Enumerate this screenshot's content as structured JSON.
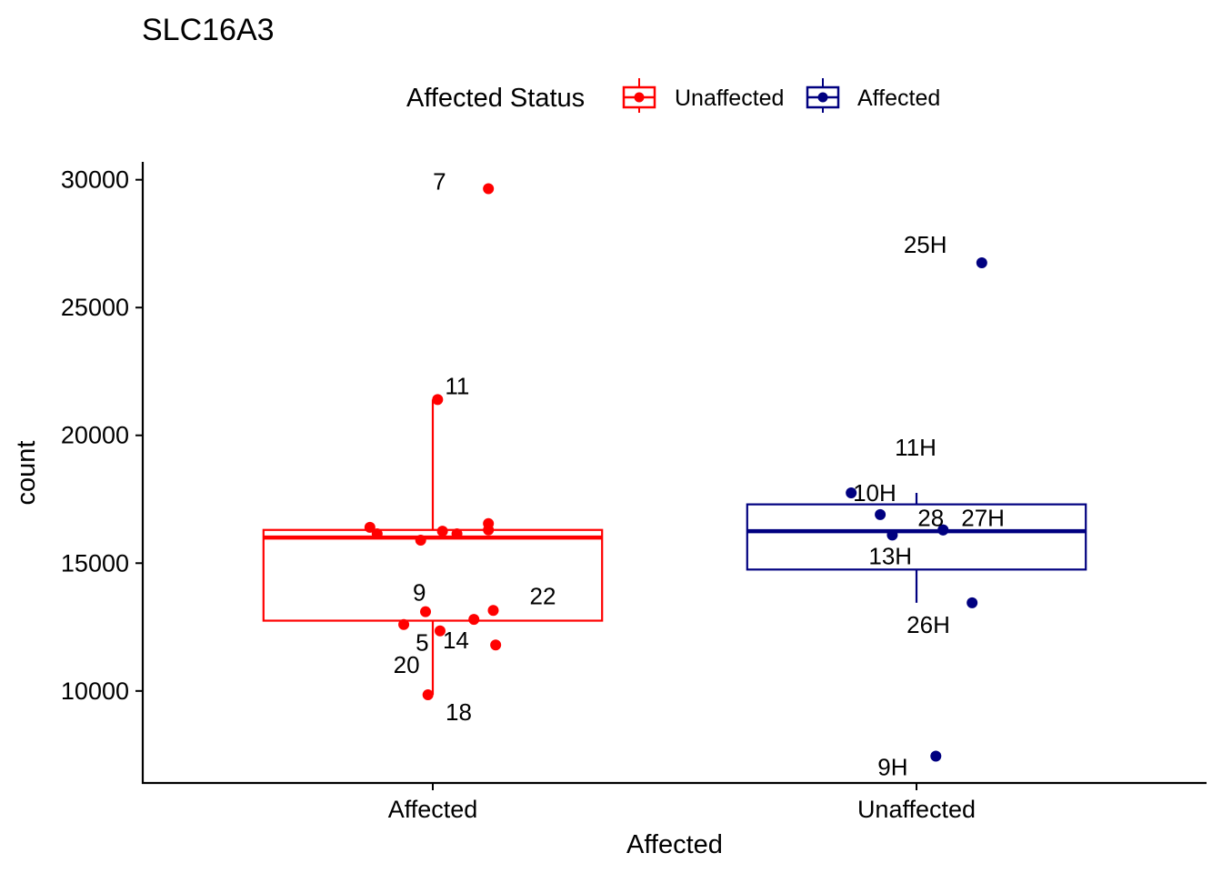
{
  "chart_data": {
    "type": "box",
    "title": "SLC16A3",
    "xlabel": "Affected",
    "ylabel": "count",
    "ylim": [
      6400,
      30700
    ],
    "y_ticks": [
      10000,
      15000,
      20000,
      25000,
      30000
    ],
    "categories": [
      "Affected",
      "Unaffected"
    ],
    "legend": {
      "title": "Affected Status",
      "position": "top",
      "entries": [
        {
          "label": "Unaffected",
          "color": "#ff0000"
        },
        {
          "label": "Affected",
          "color": "#000080"
        }
      ]
    },
    "series": [
      {
        "category": "Affected",
        "color": "#ff0000",
        "box": {
          "lower_whisker": 9850,
          "q1": 12750,
          "median": 16000,
          "q3": 16300,
          "upper_whisker": 21400
        },
        "points": [
          {
            "label": "7",
            "value": 29650,
            "jitter": 0.23
          },
          {
            "label": "11",
            "value": 21400,
            "jitter": 0.02
          },
          {
            "label": "",
            "value": 16400,
            "jitter": -0.26
          },
          {
            "label": "",
            "value": 16150,
            "jitter": -0.23
          },
          {
            "label": "",
            "value": 15900,
            "jitter": -0.05
          },
          {
            "label": "",
            "value": 16250,
            "jitter": 0.04
          },
          {
            "label": "",
            "value": 16150,
            "jitter": 0.1
          },
          {
            "label": "",
            "value": 16550,
            "jitter": 0.23
          },
          {
            "label": "",
            "value": 16300,
            "jitter": 0.23
          },
          {
            "label": "9",
            "value": 13100,
            "jitter": -0.03
          },
          {
            "label": "22",
            "value": 13150,
            "jitter": 0.25
          },
          {
            "label": "5",
            "value": 12600,
            "jitter": -0.12
          },
          {
            "label": "14",
            "value": 12350,
            "jitter": 0.03
          },
          {
            "label": "",
            "value": 12800,
            "jitter": 0.17
          },
          {
            "label": "",
            "value": 11800,
            "jitter": 0.26
          },
          {
            "label": "20",
            "value": 9850,
            "jitter": -0.02
          },
          {
            "label": "18",
            "value": null,
            "jitter": 0.0
          }
        ]
      },
      {
        "category": "Unaffected",
        "color": "#000080",
        "box": {
          "lower_whisker": 13450,
          "q1": 14750,
          "median": 16250,
          "q3": 17300,
          "upper_whisker": 17750
        },
        "points": [
          {
            "label": "25H",
            "value": 26750,
            "jitter": 0.27
          },
          {
            "label": "11H",
            "value": 17750,
            "jitter": -0.27
          },
          {
            "label": "10H",
            "value": 16900,
            "jitter": -0.15
          },
          {
            "label": "13H",
            "value": 16100,
            "jitter": -0.1
          },
          {
            "label": "28",
            "value": 16300,
            "jitter": 0.11
          },
          {
            "label": "27H",
            "value": 16300,
            "jitter": 0.11
          },
          {
            "label": "26H",
            "value": 13450,
            "jitter": 0.23
          },
          {
            "label": "9H",
            "value": 7450,
            "jitter": 0.08
          }
        ]
      }
    ]
  }
}
